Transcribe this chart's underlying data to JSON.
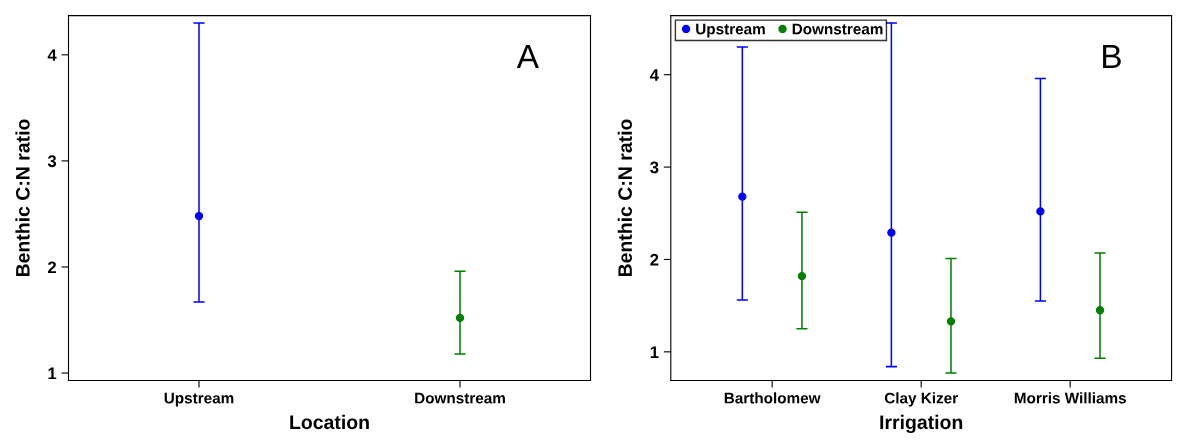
{
  "chart_data": [
    {
      "type": "scatter",
      "xlabel": "Location",
      "ylabel": "Benthic C:N ratio",
      "annotations": [
        "A"
      ],
      "categories": [
        "Upstream",
        "Downstream"
      ],
      "ylim": [
        0.93,
        4.37
      ],
      "yticks": [
        1,
        2,
        3,
        4
      ],
      "grid": false,
      "legend": false,
      "marker": "circle",
      "series": [
        {
          "color": "#0000ff",
          "values": [
            2.48,
            null
          ],
          "errors": [
            [
              1.67,
              4.3
            ],
            null
          ]
        },
        {
          "color": "#008000",
          "values": [
            null,
            1.52
          ],
          "errors": [
            null,
            [
              1.18,
              1.96
            ]
          ]
        }
      ]
    },
    {
      "type": "scatter",
      "xlabel": "Irrigation",
      "ylabel": "Benthic C:N ratio",
      "annotations": [
        "B"
      ],
      "categories": [
        "Bartholomew",
        "Clay Kizer",
        "Morris Williams"
      ],
      "ylim": [
        0.69,
        4.64
      ],
      "yticks": [
        1,
        2,
        3,
        4
      ],
      "grid": false,
      "legend": "top left",
      "marker": "circle",
      "series": [
        {
          "name": "Upstream",
          "color": "#0000ff",
          "values": [
            2.68,
            2.29,
            2.52
          ],
          "errors": [
            [
              1.56,
              4.3
            ],
            [
              0.84,
              4.56
            ],
            [
              1.55,
              3.96
            ]
          ]
        },
        {
          "name": "Downstream",
          "color": "#008000",
          "values": [
            1.82,
            1.33,
            1.45
          ],
          "errors": [
            [
              1.25,
              2.51
            ],
            [
              0.77,
              2.01
            ],
            [
              0.93,
              2.07
            ]
          ]
        }
      ]
    }
  ]
}
